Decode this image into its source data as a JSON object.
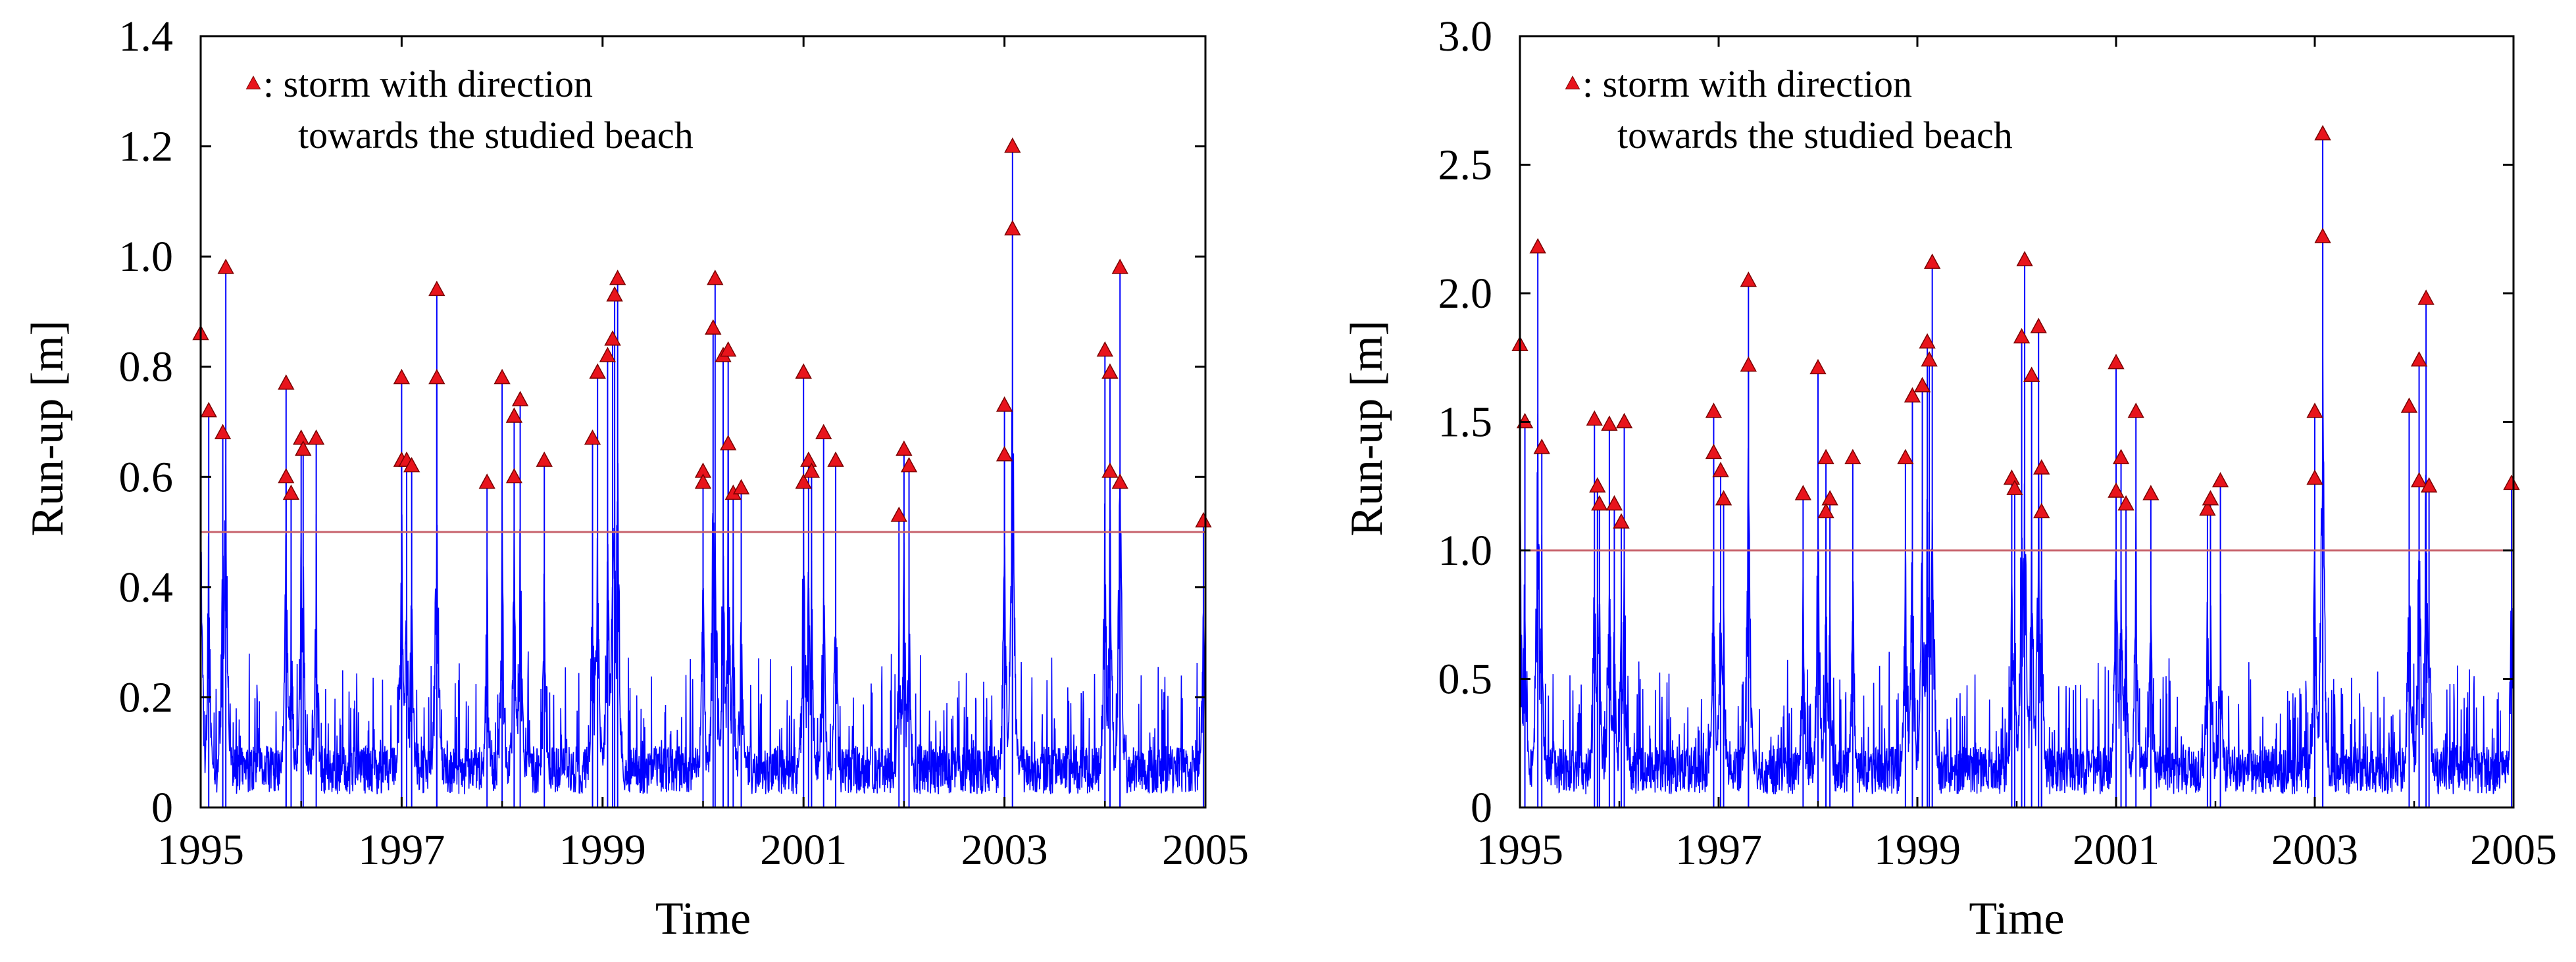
{
  "figure": {
    "legend_marker_color": "#e8141c",
    "series_color": "#0000ff",
    "threshold_color": "#c8646e"
  },
  "chart_data": [
    {
      "type": "line",
      "title": "",
      "xlabel": "Time",
      "ylabel": "Run-up [m]",
      "xlim": [
        1995,
        2005
      ],
      "ylim": [
        0,
        1.4
      ],
      "x_ticks": [
        "1995",
        "1997",
        "1999",
        "2001",
        "2003",
        "2005"
      ],
      "y_ticks": [
        "0",
        "0.2",
        "0.4",
        "0.6",
        "0.8",
        "1.0",
        "1.2",
        "1.4"
      ],
      "threshold": 0.5,
      "legend_line1": "▲: storm with direction",
      "legend_line2": "towards the studied beach",
      "background_level": 0.08,
      "seed": 11,
      "storm_peaks": [
        {
          "t": 1995.0,
          "v": 0.86
        },
        {
          "t": 1995.08,
          "v": 0.72
        },
        {
          "t": 1995.25,
          "v": 0.98
        },
        {
          "t": 1995.22,
          "v": 0.68
        },
        {
          "t": 1995.85,
          "v": 0.77
        },
        {
          "t": 1995.85,
          "v": 0.6
        },
        {
          "t": 1995.9,
          "v": 0.57
        },
        {
          "t": 1996.0,
          "v": 0.67
        },
        {
          "t": 1996.02,
          "v": 0.65
        },
        {
          "t": 1996.15,
          "v": 0.67
        },
        {
          "t": 1997.0,
          "v": 0.78
        },
        {
          "t": 1997.0,
          "v": 0.63
        },
        {
          "t": 1997.05,
          "v": 0.63
        },
        {
          "t": 1997.1,
          "v": 0.62
        },
        {
          "t": 1997.35,
          "v": 0.94
        },
        {
          "t": 1997.35,
          "v": 0.78
        },
        {
          "t": 1997.85,
          "v": 0.59
        },
        {
          "t": 1998.0,
          "v": 0.78
        },
        {
          "t": 1998.12,
          "v": 0.71
        },
        {
          "t": 1998.18,
          "v": 0.74
        },
        {
          "t": 1998.12,
          "v": 0.6
        },
        {
          "t": 1998.42,
          "v": 0.63
        },
        {
          "t": 1998.9,
          "v": 0.67
        },
        {
          "t": 1998.95,
          "v": 0.79
        },
        {
          "t": 1999.05,
          "v": 0.82
        },
        {
          "t": 1999.1,
          "v": 0.85
        },
        {
          "t": 1999.12,
          "v": 0.93
        },
        {
          "t": 1999.15,
          "v": 0.96
        },
        {
          "t": 2000.0,
          "v": 0.61
        },
        {
          "t": 2000.0,
          "v": 0.59
        },
        {
          "t": 2000.1,
          "v": 0.87
        },
        {
          "t": 2000.12,
          "v": 0.96
        },
        {
          "t": 2000.2,
          "v": 0.82
        },
        {
          "t": 2000.25,
          "v": 0.83
        },
        {
          "t": 2000.25,
          "v": 0.66
        },
        {
          "t": 2000.3,
          "v": 0.57
        },
        {
          "t": 2000.38,
          "v": 0.58
        },
        {
          "t": 2001.0,
          "v": 0.79
        },
        {
          "t": 2001.0,
          "v": 0.59
        },
        {
          "t": 2001.05,
          "v": 0.63
        },
        {
          "t": 2001.08,
          "v": 0.61
        },
        {
          "t": 2001.2,
          "v": 0.68
        },
        {
          "t": 2001.32,
          "v": 0.63
        },
        {
          "t": 2001.95,
          "v": 0.53
        },
        {
          "t": 2002.0,
          "v": 0.65
        },
        {
          "t": 2002.05,
          "v": 0.62
        },
        {
          "t": 2003.0,
          "v": 0.73
        },
        {
          "t": 2003.0,
          "v": 0.64
        },
        {
          "t": 2003.08,
          "v": 1.2
        },
        {
          "t": 2003.08,
          "v": 1.05
        },
        {
          "t": 2004.0,
          "v": 0.83
        },
        {
          "t": 2004.05,
          "v": 0.79
        },
        {
          "t": 2004.05,
          "v": 0.61
        },
        {
          "t": 2004.15,
          "v": 0.98
        },
        {
          "t": 2004.15,
          "v": 0.59
        },
        {
          "t": 2004.98,
          "v": 0.52
        }
      ]
    },
    {
      "type": "line",
      "title": "",
      "xlabel": "Time",
      "ylabel": "Run-up [m]",
      "xlim": [
        1995,
        2005
      ],
      "ylim": [
        0,
        3.0
      ],
      "x_ticks": [
        "1995",
        "1997",
        "1999",
        "2001",
        "2003",
        "2005"
      ],
      "y_ticks": [
        "0",
        "0.5",
        "1.0",
        "1.5",
        "2.0",
        "2.5",
        "3.0"
      ],
      "threshold": 1.0,
      "legend_line1": "▲: storm with direction",
      "legend_line2": "towards the studied beach",
      "background_level": 0.17,
      "seed": 29,
      "storm_peaks": [
        {
          "t": 1995.0,
          "v": 1.8
        },
        {
          "t": 1995.05,
          "v": 1.5
        },
        {
          "t": 1995.18,
          "v": 2.18
        },
        {
          "t": 1995.22,
          "v": 1.4
        },
        {
          "t": 1995.75,
          "v": 1.51
        },
        {
          "t": 1995.78,
          "v": 1.25
        },
        {
          "t": 1995.8,
          "v": 1.18
        },
        {
          "t": 1995.9,
          "v": 1.49
        },
        {
          "t": 1995.95,
          "v": 1.18
        },
        {
          "t": 1996.05,
          "v": 1.5
        },
        {
          "t": 1996.02,
          "v": 1.11
        },
        {
          "t": 1996.95,
          "v": 1.54
        },
        {
          "t": 1996.95,
          "v": 1.38
        },
        {
          "t": 1997.02,
          "v": 1.31
        },
        {
          "t": 1997.05,
          "v": 1.2
        },
        {
          "t": 1997.3,
          "v": 2.05
        },
        {
          "t": 1997.3,
          "v": 1.72
        },
        {
          "t": 1997.85,
          "v": 1.22
        },
        {
          "t": 1998.0,
          "v": 1.71
        },
        {
          "t": 1998.08,
          "v": 1.36
        },
        {
          "t": 1998.12,
          "v": 1.2
        },
        {
          "t": 1998.08,
          "v": 1.15
        },
        {
          "t": 1998.35,
          "v": 1.36
        },
        {
          "t": 1998.88,
          "v": 1.36
        },
        {
          "t": 1998.95,
          "v": 1.6
        },
        {
          "t": 1999.05,
          "v": 1.64
        },
        {
          "t": 1999.1,
          "v": 1.81
        },
        {
          "t": 1999.12,
          "v": 1.74
        },
        {
          "t": 1999.15,
          "v": 2.12
        },
        {
          "t": 1999.95,
          "v": 1.28
        },
        {
          "t": 1999.98,
          "v": 1.24
        },
        {
          "t": 2000.05,
          "v": 1.83
        },
        {
          "t": 2000.08,
          "v": 2.13
        },
        {
          "t": 2000.15,
          "v": 1.68
        },
        {
          "t": 2000.22,
          "v": 1.87
        },
        {
          "t": 2000.25,
          "v": 1.32
        },
        {
          "t": 2000.25,
          "v": 1.15
        },
        {
          "t": 2001.0,
          "v": 1.73
        },
        {
          "t": 2001.0,
          "v": 1.23
        },
        {
          "t": 2001.05,
          "v": 1.36
        },
        {
          "t": 2001.1,
          "v": 1.18
        },
        {
          "t": 2001.2,
          "v": 1.54
        },
        {
          "t": 2001.35,
          "v": 1.22
        },
        {
          "t": 2001.92,
          "v": 1.16
        },
        {
          "t": 2001.95,
          "v": 1.2
        },
        {
          "t": 2002.05,
          "v": 1.27
        },
        {
          "t": 2003.0,
          "v": 1.54
        },
        {
          "t": 2003.0,
          "v": 1.28
        },
        {
          "t": 2003.08,
          "v": 2.62
        },
        {
          "t": 2003.08,
          "v": 2.22
        },
        {
          "t": 2003.95,
          "v": 1.56
        },
        {
          "t": 2004.05,
          "v": 1.74
        },
        {
          "t": 2004.05,
          "v": 1.27
        },
        {
          "t": 2004.12,
          "v": 1.98
        },
        {
          "t": 2004.15,
          "v": 1.25
        },
        {
          "t": 2004.98,
          "v": 1.26
        }
      ]
    }
  ]
}
